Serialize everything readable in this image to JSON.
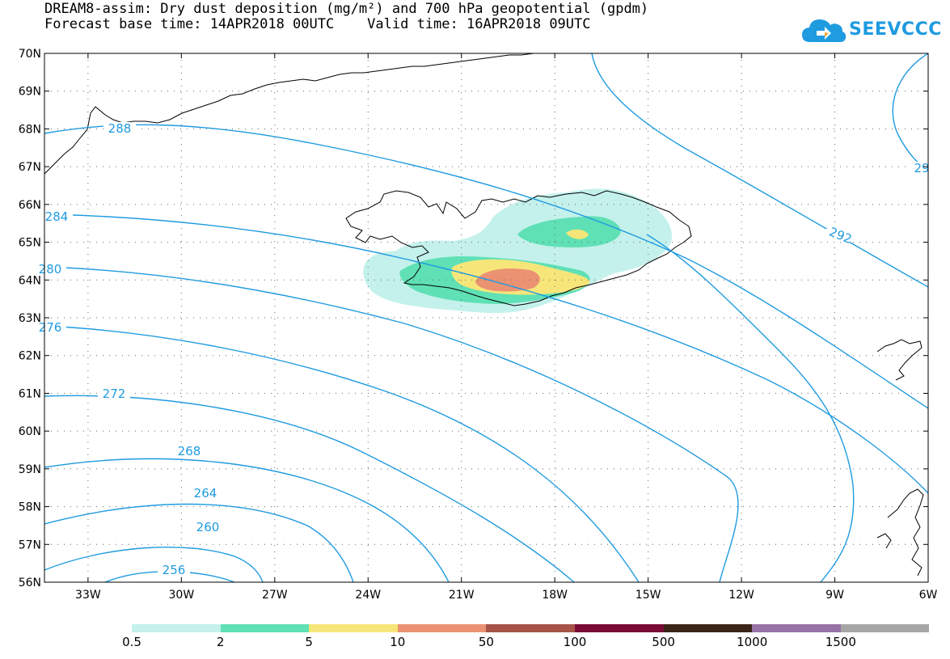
{
  "title": {
    "line1": "DREAM8-assim: Dry dust deposition (mg/m²) and 700 hPa geopotential (gpdm)",
    "line2": "Forecast base time: 14APR2018 00UTC    Valid time: 16APR2018 09UTC"
  },
  "logo": {
    "text": "SEEVCCC",
    "icon": "cloud-icon"
  },
  "map": {
    "lat_labels": [
      "70N",
      "69N",
      "68N",
      "67N",
      "66N",
      "65N",
      "64N",
      "63N",
      "62N",
      "61N",
      "60N",
      "59N",
      "58N",
      "57N",
      "56N"
    ],
    "lon_labels": [
      "33W",
      "30W",
      "27W",
      "24W",
      "21W",
      "18W",
      "15W",
      "12W",
      "9W",
      "6W"
    ],
    "lat_range": [
      56,
      70
    ],
    "lon_range": [
      -34.4,
      -6
    ],
    "contour_color": "#1f9be0",
    "contour_labels": [
      "288",
      "284",
      "280",
      "276",
      "272",
      "268",
      "264",
      "260",
      "256",
      "292",
      "29"
    ]
  },
  "legend": {
    "colors": [
      "#c4f1ec",
      "#5fe0b5",
      "#f6e679",
      "#eb9273",
      "#a85348",
      "#7a0b35",
      "#3b2418",
      "#9573a6",
      "#a6a6a6"
    ],
    "ticks": [
      "0.5",
      "2",
      "5",
      "10",
      "50",
      "100",
      "500",
      "1000",
      "1500"
    ]
  }
}
